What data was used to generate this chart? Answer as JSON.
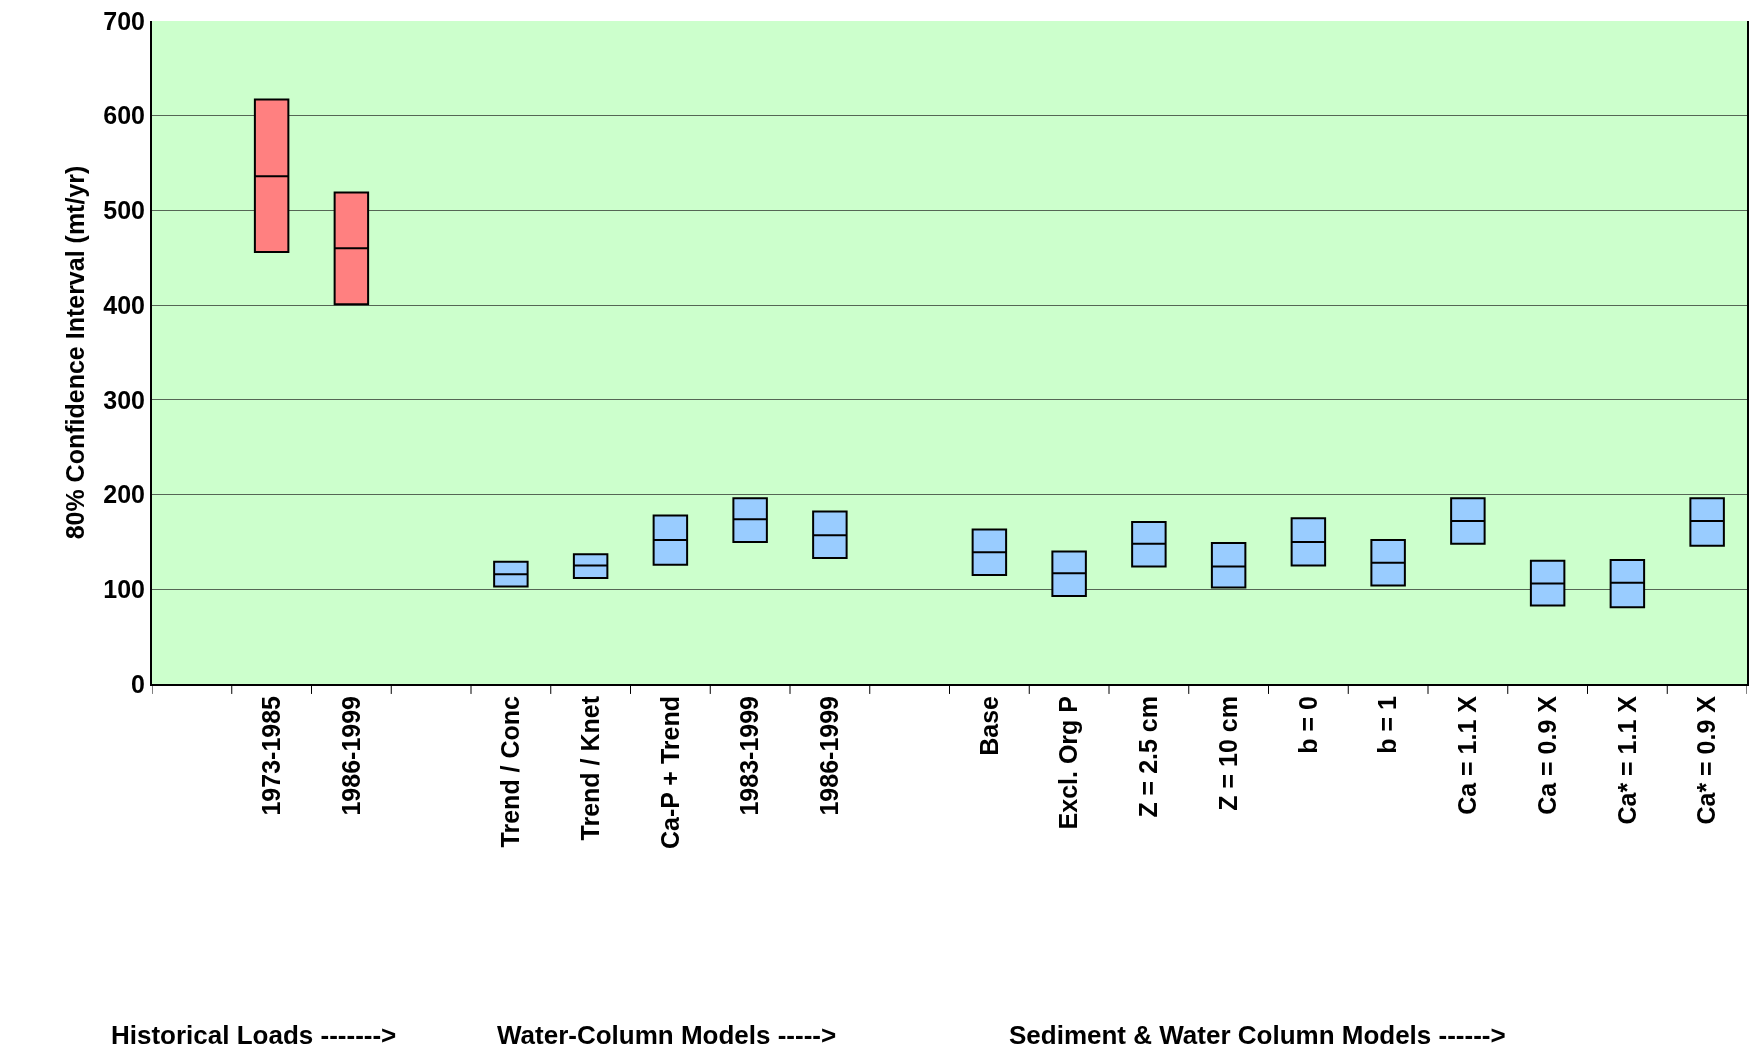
{
  "chart_data": {
    "type": "box",
    "ylabel": "80% Confidence Interval (mt/yr)",
    "categories": [
      null,
      "1973-1985",
      "1986-1999",
      null,
      "Trend / Conc",
      "Trend / Knet",
      "Ca-P + Trend",
      "1983-1999",
      "1986-1999",
      null,
      "Base",
      "Excl. Org P",
      "Z = 2.5 cm",
      "Z = 10 cm",
      "b = 0",
      "b = 1",
      "Ca = 1.1 X",
      "Ca = 0.9 X",
      "Ca* = 1.1 X",
      "Ca* = 0.9 X"
    ],
    "series": [
      {
        "color": "#ff8080",
        "boxes": [
          null,
          {
            "low": 456,
            "q1": 456,
            "median": 536,
            "q3": 617,
            "high": 617
          },
          {
            "low": 401,
            "q1": 401,
            "median": 460,
            "q3": 519,
            "high": 519
          },
          null,
          null,
          null,
          null,
          null,
          null,
          null,
          null,
          null,
          null,
          null,
          null,
          null,
          null,
          null,
          null,
          null
        ]
      },
      {
        "color": "#99ccff",
        "boxes": [
          null,
          null,
          null,
          null,
          {
            "low": 103,
            "q1": 103,
            "median": 116,
            "q3": 129,
            "high": 129
          },
          {
            "low": 112,
            "q1": 112,
            "median": 125,
            "q3": 137,
            "high": 137
          },
          {
            "low": 126,
            "q1": 126,
            "median": 152,
            "q3": 178,
            "high": 178
          },
          {
            "low": 150,
            "q1": 150,
            "median": 174,
            "q3": 196,
            "high": 196
          },
          {
            "low": 133,
            "q1": 133,
            "median": 157,
            "q3": 182,
            "high": 182
          },
          null,
          {
            "low": 115,
            "q1": 115,
            "median": 139,
            "q3": 163,
            "high": 163
          },
          {
            "low": 93,
            "q1": 93,
            "median": 117,
            "q3": 140,
            "high": 140
          },
          {
            "low": 124,
            "q1": 124,
            "median": 148,
            "q3": 171,
            "high": 171
          },
          {
            "low": 102,
            "q1": 102,
            "median": 124,
            "q3": 149,
            "high": 149
          },
          {
            "low": 125,
            "q1": 125,
            "median": 150,
            "q3": 175,
            "high": 175
          },
          {
            "low": 104,
            "q1": 104,
            "median": 128,
            "q3": 152,
            "high": 152
          },
          {
            "low": 148,
            "q1": 148,
            "median": 172,
            "q3": 196,
            "high": 196
          },
          {
            "low": 83,
            "q1": 83,
            "median": 106,
            "q3": 130,
            "high": 130
          },
          {
            "low": 81,
            "q1": 81,
            "median": 107,
            "q3": 131,
            "high": 131
          },
          {
            "low": 146,
            "q1": 146,
            "median": 172,
            "q3": 196,
            "high": 196
          }
        ]
      }
    ],
    "ylim": [
      0,
      700
    ],
    "yticks": [
      0,
      100,
      200,
      300,
      400,
      500,
      600,
      700
    ],
    "grid": "y",
    "annotations": [
      "Historical Loads ------->",
      "Water-Column Models ----->",
      "Sediment & Water Column Models ------>"
    ]
  }
}
